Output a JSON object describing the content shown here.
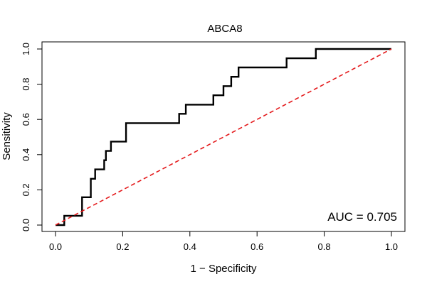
{
  "chart_data": {
    "type": "line",
    "title": "ABCA8",
    "xlabel": "1 − Specificity",
    "ylabel": "Sensitivity",
    "xlim": [
      0.0,
      1.0
    ],
    "ylim": [
      0.0,
      1.0
    ],
    "x_ticks": [
      0.0,
      0.2,
      0.4,
      0.6,
      0.8,
      1.0
    ],
    "x_tick_labels": [
      "0.0",
      "0.2",
      "0.4",
      "0.6",
      "0.8",
      "1.0"
    ],
    "y_ticks": [
      0.0,
      0.2,
      0.4,
      0.6,
      0.8,
      1.0
    ],
    "y_tick_labels": [
      "0.0",
      "0.2",
      "0.4",
      "0.6",
      "0.8",
      "1.0"
    ],
    "grid": false,
    "annotation": "AUC = 0.705",
    "series": [
      {
        "style": "step",
        "color": "#000000",
        "points": [
          [
            0.0,
            0.0
          ],
          [
            0.026,
            0.0
          ],
          [
            0.026,
            0.053
          ],
          [
            0.079,
            0.053
          ],
          [
            0.079,
            0.158
          ],
          [
            0.105,
            0.158
          ],
          [
            0.105,
            0.263
          ],
          [
            0.118,
            0.263
          ],
          [
            0.118,
            0.316
          ],
          [
            0.145,
            0.316
          ],
          [
            0.145,
            0.368
          ],
          [
            0.15,
            0.368
          ],
          [
            0.15,
            0.421
          ],
          [
            0.165,
            0.421
          ],
          [
            0.165,
            0.474
          ],
          [
            0.21,
            0.474
          ],
          [
            0.21,
            0.579
          ],
          [
            0.368,
            0.579
          ],
          [
            0.368,
            0.632
          ],
          [
            0.388,
            0.632
          ],
          [
            0.388,
            0.684
          ],
          [
            0.47,
            0.684
          ],
          [
            0.47,
            0.737
          ],
          [
            0.5,
            0.737
          ],
          [
            0.5,
            0.789
          ],
          [
            0.523,
            0.789
          ],
          [
            0.523,
            0.842
          ],
          [
            0.545,
            0.842
          ],
          [
            0.545,
            0.895
          ],
          [
            0.688,
            0.895
          ],
          [
            0.688,
            0.947
          ],
          [
            0.775,
            0.947
          ],
          [
            0.775,
            1.0
          ],
          [
            1.0,
            1.0
          ]
        ]
      },
      {
        "style": "dashed",
        "color": "#e41a1c",
        "points": [
          [
            0.0,
            0.0
          ],
          [
            1.0,
            1.0
          ]
        ]
      }
    ]
  }
}
